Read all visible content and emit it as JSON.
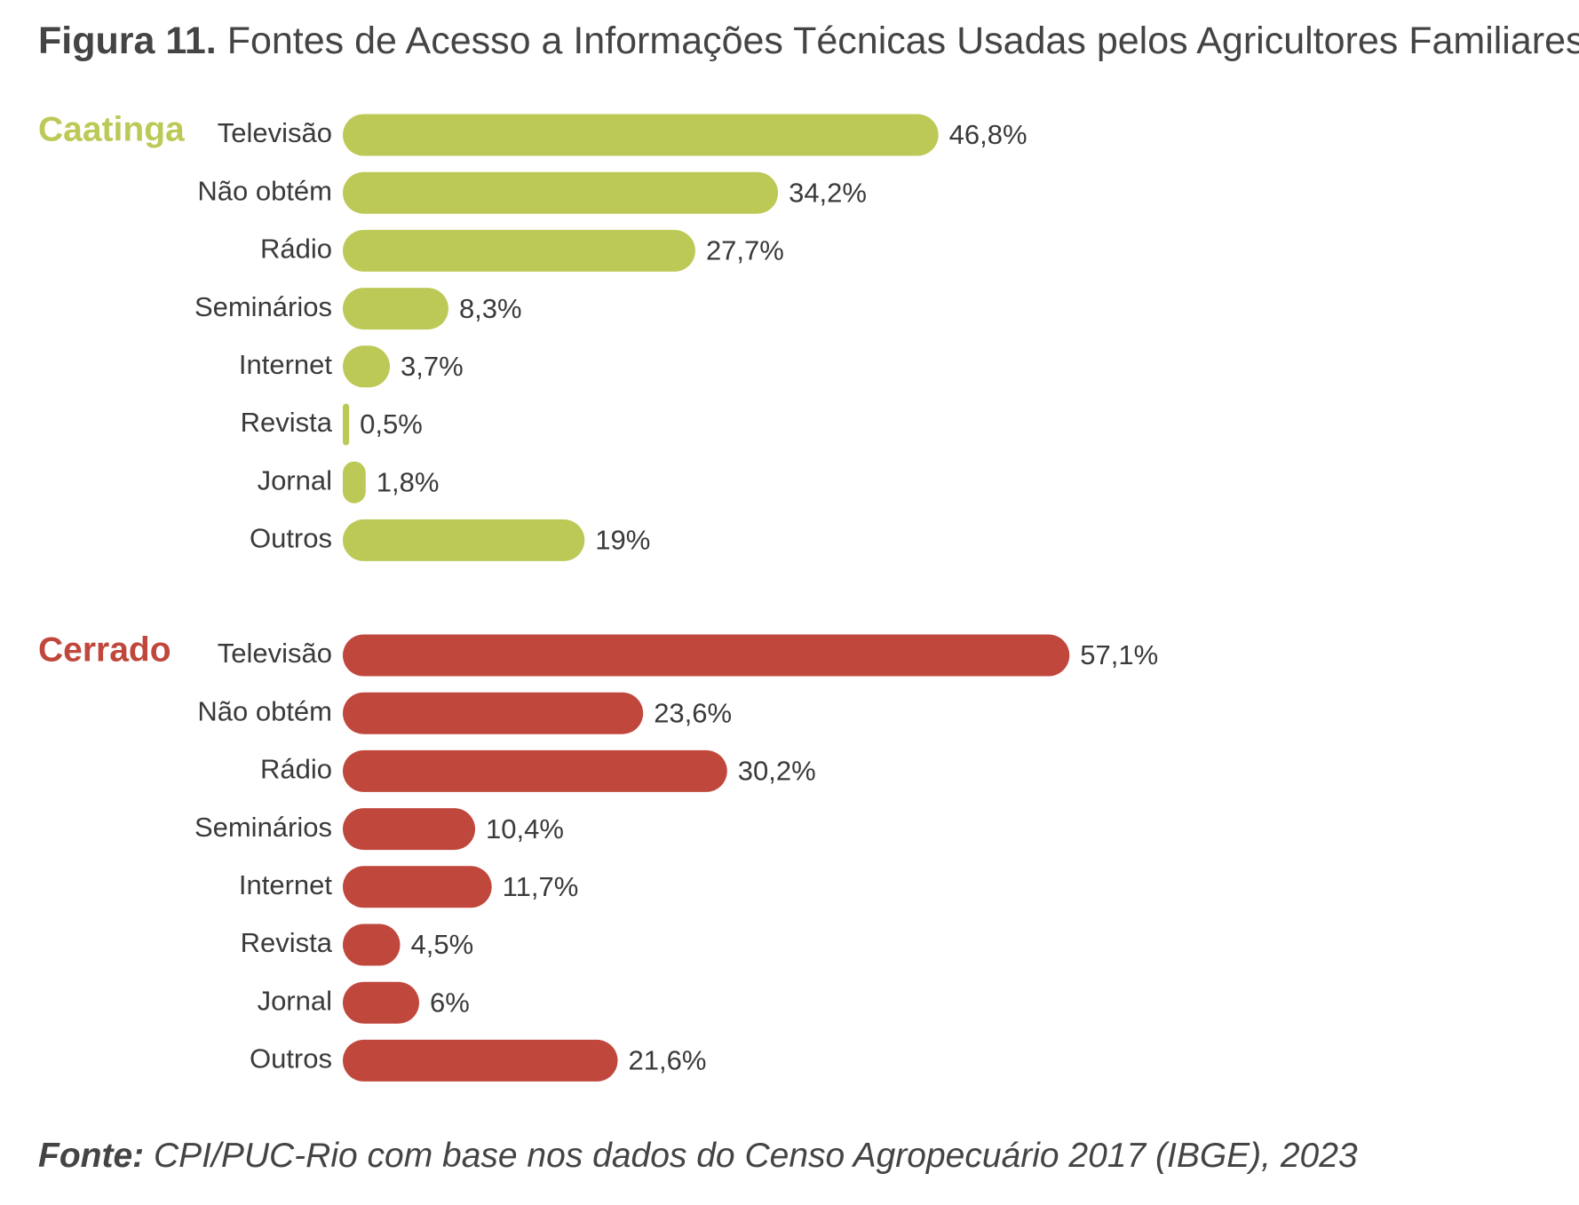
{
  "title": {
    "label": "Figura 11.",
    "text": "Fontes de Acesso a Informações Técnicas Usadas pelos Agricultores Familiares"
  },
  "source": {
    "label": "Fonte:",
    "text": "CPI/PUC-Rio com base nos dados do Censo Agropecuário 2017 (IBGE), 2023"
  },
  "colors": {
    "caatinga": "#bdc957",
    "cerrado": "#c0473c"
  },
  "chart_data": {
    "type": "bar",
    "orientation": "horizontal",
    "unit": "%",
    "grid": false,
    "legend": "none",
    "groups": [
      {
        "name": "Caatinga",
        "color": "#bdc957",
        "categories": [
          "Televisão",
          "Não obtém",
          "Rádio",
          "Seminários",
          "Internet",
          "Revista",
          "Jornal",
          "Outros"
        ],
        "values": [
          46.8,
          34.2,
          27.7,
          8.3,
          3.7,
          0.5,
          1.8,
          19
        ],
        "value_labels": [
          "46,8%",
          "34,2%",
          "27,7%",
          "8,3%",
          "3,7%",
          "0,5%",
          "1,8%",
          "19%"
        ]
      },
      {
        "name": "Cerrado",
        "color": "#c0473c",
        "categories": [
          "Televisão",
          "Não obtém",
          "Rádio",
          "Seminários",
          "Internet",
          "Revista",
          "Jornal",
          "Outros"
        ],
        "values": [
          57.1,
          23.6,
          30.2,
          10.4,
          11.7,
          4.5,
          6,
          21.6
        ],
        "value_labels": [
          "57,1%",
          "23,6%",
          "30,2%",
          "10,4%",
          "11,7%",
          "4,5%",
          "6%",
          "21,6%"
        ]
      }
    ]
  }
}
